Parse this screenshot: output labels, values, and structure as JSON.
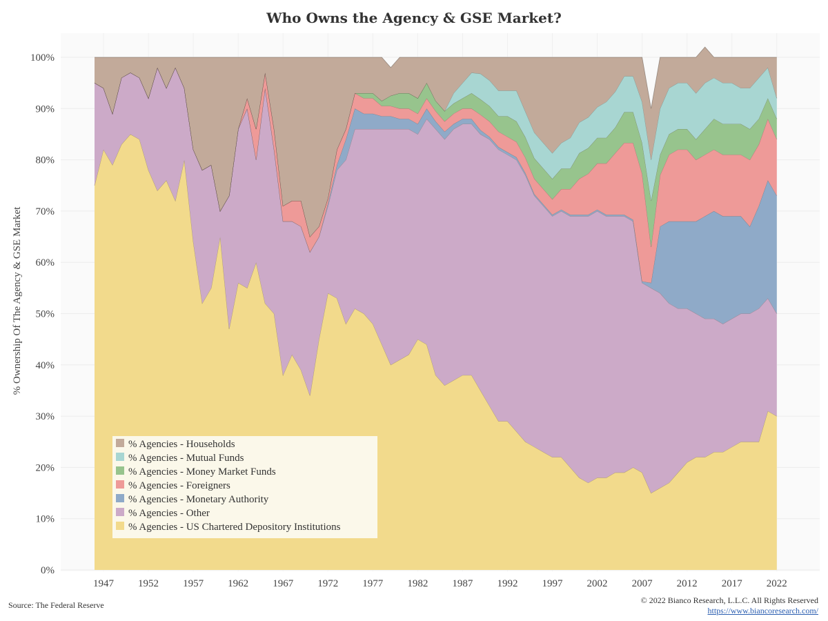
{
  "chart_data": {
    "type": "area",
    "stacked": true,
    "title": "Who Owns the Agency & GSE Market?",
    "ylabel": "% Ownership Of The Agency & GSE Market",
    "ylim": [
      0,
      100
    ],
    "xlim": [
      1945.5,
      2022.5
    ],
    "yticks": [
      "0%",
      "10%",
      "20%",
      "30%",
      "40%",
      "50%",
      "60%",
      "70%",
      "80%",
      "90%",
      "100%"
    ],
    "xticks": [
      "1947",
      "1952",
      "1957",
      "1962",
      "1967",
      "1972",
      "1977",
      "1982",
      "1987",
      "1992",
      "1997",
      "2002",
      "2007",
      "2012",
      "2017",
      "2022"
    ],
    "grid": true,
    "legend_placement": "bottom-left",
    "x": [
      1946,
      1947,
      1948,
      1949,
      1950,
      1951,
      1952,
      1953,
      1954,
      1955,
      1956,
      1957,
      1958,
      1959,
      1960,
      1961,
      1962,
      1963,
      1964,
      1965,
      1966,
      1967,
      1968,
      1969,
      1970,
      1971,
      1972,
      1973,
      1974,
      1975,
      1976,
      1977,
      1978,
      1979,
      1980,
      1981,
      1982,
      1983,
      1984,
      1985,
      1986,
      1987,
      1988,
      1989,
      1990,
      1991,
      1992,
      1993,
      1994,
      1995,
      1996,
      1997,
      1998,
      1999,
      2000,
      2001,
      2002,
      2003,
      2004,
      2005,
      2006,
      2007,
      2008,
      2009,
      2010,
      2011,
      2012,
      2013,
      2014,
      2015,
      2016,
      2017,
      2018,
      2019,
      2020,
      2021,
      2022
    ],
    "series": [
      {
        "name": "% Agencies - US Chartered Depository Institutions",
        "color": "#f2da8c",
        "values": [
          75,
          82,
          79,
          83,
          85,
          84,
          78,
          74,
          76,
          72,
          80,
          64,
          52,
          55,
          65,
          47,
          56,
          55,
          60,
          52,
          50,
          38,
          42,
          39,
          34,
          45,
          54,
          53,
          48,
          51,
          50,
          48,
          44,
          40,
          41,
          42,
          45,
          44,
          38,
          36,
          37,
          38,
          38,
          35,
          32,
          29,
          29,
          27,
          25,
          24,
          23,
          22,
          22,
          20,
          18,
          17,
          18,
          18,
          19,
          19,
          20,
          19,
          15,
          16,
          17,
          19,
          21,
          22,
          22,
          23,
          23,
          24,
          25,
          25,
          25,
          31,
          30
        ]
      },
      {
        "name": "% Agencies - Other",
        "color": "#ccaac8",
        "values": [
          20,
          12,
          10,
          13,
          12,
          12,
          14,
          24,
          18,
          26,
          14,
          18,
          26,
          24,
          5,
          26,
          30,
          35,
          20,
          42,
          32,
          30,
          26,
          28,
          28,
          20,
          17,
          25,
          32,
          35,
          36,
          38,
          42,
          46,
          45,
          44,
          40,
          44,
          48,
          48,
          49,
          49,
          49,
          50,
          52,
          53,
          52,
          53,
          52,
          49,
          48,
          47,
          48,
          49,
          51,
          52,
          52,
          51,
          50,
          50,
          48,
          37,
          40,
          38,
          35,
          32,
          30,
          28,
          27,
          26,
          25,
          25,
          25,
          25,
          26,
          22,
          20
        ]
      },
      {
        "name": "% Agencies - Monetary Authority",
        "color": "#8faac8",
        "values": [
          0,
          0,
          0,
          0,
          0,
          0,
          0,
          0,
          0,
          0,
          0,
          0,
          0,
          0,
          0,
          0,
          0,
          0,
          0,
          0,
          0,
          0,
          0,
          0,
          0,
          0,
          0.5,
          1,
          4,
          4,
          3,
          3,
          2.5,
          2.5,
          2,
          2,
          2,
          2,
          1.5,
          1.5,
          1,
          1,
          1,
          0.8,
          0.5,
          0.5,
          0.5,
          0.5,
          0.4,
          0.3,
          0.3,
          0.3,
          0.3,
          0.3,
          0.3,
          0.3,
          0.3,
          0.3,
          0.3,
          0.3,
          0.3,
          0.3,
          1,
          13,
          16,
          17,
          17,
          18,
          20,
          21,
          21,
          20,
          19,
          17,
          20,
          23,
          23
        ]
      },
      {
        "name": "% Agencies - Foreigners",
        "color": "#ee9a98",
        "values": [
          0,
          0,
          0,
          0,
          0,
          0,
          0,
          0,
          0,
          0,
          0,
          0,
          0,
          0,
          0,
          0,
          0,
          2,
          6,
          3,
          4,
          3,
          4,
          5,
          3,
          2,
          1,
          3,
          2,
          3,
          3,
          3,
          2,
          2,
          2,
          2,
          2,
          2,
          2,
          2,
          2,
          2,
          2,
          3,
          3,
          3,
          3,
          3,
          3,
          3,
          3,
          3,
          4,
          5,
          7,
          8,
          9,
          10,
          12,
          14,
          15,
          21,
          7,
          10,
          13,
          14,
          14,
          12,
          12,
          12,
          12,
          12,
          12,
          13,
          12,
          12,
          11
        ]
      },
      {
        "name": "% Agencies - Money Market Funds",
        "color": "#97c48d",
        "values": [
          0,
          0,
          0,
          0,
          0,
          0,
          0,
          0,
          0,
          0,
          0,
          0,
          0,
          0,
          0,
          0,
          0,
          0,
          0,
          0,
          0,
          0,
          0,
          0,
          0,
          0,
          0,
          0,
          0,
          0,
          1,
          1,
          1,
          2,
          3,
          3,
          3,
          3,
          2,
          2,
          2,
          2,
          3,
          3,
          3,
          3,
          4,
          4,
          4,
          4,
          4,
          4,
          4,
          4,
          5,
          5,
          5,
          5,
          5,
          6,
          6,
          6,
          9,
          4,
          4,
          4,
          4,
          4,
          5,
          6,
          6,
          6,
          6,
          6,
          5,
          4,
          4
        ]
      },
      {
        "name": "% Agencies - Mutual Funds",
        "color": "#a8d6d2",
        "values": [
          0,
          0,
          0,
          0,
          0,
          0,
          0,
          0,
          0,
          0,
          0,
          0,
          0,
          0,
          0,
          0,
          0,
          0,
          0,
          0,
          0,
          0,
          0,
          0,
          0,
          0,
          0,
          0,
          0,
          0,
          0,
          0,
          0,
          0,
          0,
          0,
          0,
          0,
          0,
          0,
          2,
          3,
          4,
          5,
          5,
          5,
          5,
          6,
          5,
          5,
          5,
          5,
          5,
          6,
          6,
          6,
          6,
          7,
          7,
          7,
          7,
          8,
          8,
          9,
          9,
          9,
          9,
          9,
          9,
          8,
          8,
          8,
          7,
          8,
          8,
          6,
          4
        ]
      },
      {
        "name": "% Agencies - Households",
        "color": "#c2aa9a",
        "values": [
          5,
          6,
          11,
          4,
          3,
          4,
          8,
          2,
          6,
          2,
          6,
          18,
          22,
          21,
          30,
          27,
          14,
          8,
          14,
          3,
          14,
          29,
          28,
          28,
          35,
          33,
          27.5,
          18,
          14,
          7,
          7,
          7,
          8.5,
          5.5,
          7,
          7,
          8,
          5,
          8.5,
          10.5,
          7,
          5,
          3,
          3.2,
          4.5,
          6.5,
          6.5,
          6.5,
          10.6,
          14.7,
          16.7,
          18.7,
          16.7,
          15.7,
          12.7,
          11.7,
          9.7,
          8.7,
          6.7,
          3.7,
          3.7,
          8.7,
          10,
          10,
          6,
          5,
          5,
          7,
          7,
          4,
          5,
          5,
          6,
          6,
          4,
          2,
          8
        ]
      }
    ]
  },
  "footer": {
    "source": "Source: The Federal Reserve",
    "copyright": "© 2022 Bianco Research, L.L.C. All Rights Reserved",
    "url": "https://www.biancoresearch.com/"
  }
}
